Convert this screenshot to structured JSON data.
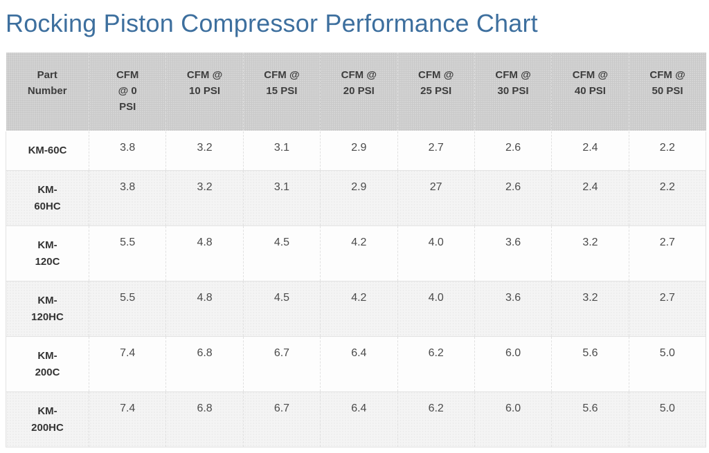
{
  "page": {
    "title": "Rocking Piston Compressor Performance Chart"
  },
  "chart_data": {
    "type": "table",
    "title": "Rocking Piston Compressor Performance Chart",
    "columns": [
      "Part Number",
      "CFM @ 0 PSI",
      "CFM @ 10 PSI",
      "CFM @ 15 PSI",
      "CFM @ 20 PSI",
      "CFM @ 25 PSI",
      "CFM @ 30 PSI",
      "CFM @ 40 PSI",
      "CFM @ 50 PSI"
    ],
    "rows": [
      {
        "part": "KM-60C",
        "values": [
          3.8,
          3.2,
          3.1,
          2.9,
          2.7,
          2.6,
          2.4,
          2.2
        ]
      },
      {
        "part": "KM-60HC",
        "values": [
          3.8,
          3.2,
          3.1,
          2.9,
          27,
          2.6,
          2.4,
          2.2
        ]
      },
      {
        "part": "KM-120C",
        "values": [
          5.5,
          4.8,
          4.5,
          4.2,
          4.0,
          3.6,
          3.2,
          2.7
        ]
      },
      {
        "part": "KM-120HC",
        "values": [
          5.5,
          4.8,
          4.5,
          4.2,
          4.0,
          3.6,
          3.2,
          2.7
        ]
      },
      {
        "part": "KM-200C",
        "values": [
          7.4,
          6.8,
          6.7,
          6.4,
          6.2,
          6.0,
          5.6,
          5.0
        ]
      },
      {
        "part": "KM-200HC",
        "values": [
          7.4,
          6.8,
          6.7,
          6.4,
          6.2,
          6.0,
          5.6,
          5.0
        ]
      }
    ]
  },
  "table": {
    "headers": [
      "Part\nNumber",
      "CFM\n@ 0\nPSI",
      "CFM @\n10 PSI",
      "CFM @\n15 PSI",
      "CFM @\n20 PSI",
      "CFM @\n25 PSI",
      "CFM @\n30 PSI",
      "CFM @\n40 PSI",
      "CFM @\n50 PSI"
    ],
    "rows": [
      {
        "part_display": "KM-60C",
        "values": [
          "3.8",
          "3.2",
          "3.1",
          "2.9",
          "2.7",
          "2.6",
          "2.4",
          "2.2"
        ]
      },
      {
        "part_display": "KM-\n60HC",
        "values": [
          "3.8",
          "3.2",
          "3.1",
          "2.9",
          "27",
          "2.6",
          "2.4",
          "2.2"
        ]
      },
      {
        "part_display": "KM-\n120C",
        "values": [
          "5.5",
          "4.8",
          "4.5",
          "4.2",
          "4.0",
          "3.6",
          "3.2",
          "2.7"
        ]
      },
      {
        "part_display": "KM-\n120HC",
        "values": [
          "5.5",
          "4.8",
          "4.5",
          "4.2",
          "4.0",
          "3.6",
          "3.2",
          "2.7"
        ]
      },
      {
        "part_display": "KM-\n200C",
        "values": [
          "7.4",
          "6.8",
          "6.7",
          "6.4",
          "6.2",
          "6.0",
          "5.6",
          "5.0"
        ]
      },
      {
        "part_display": "KM-\n200HC",
        "values": [
          "7.4",
          "6.8",
          "6.7",
          "6.4",
          "6.2",
          "6.0",
          "5.6",
          "5.0"
        ]
      }
    ]
  },
  "colors": {
    "title": "#3d6f9e",
    "header_bg": "#c9c9c9",
    "header_text": "#3d3d3d",
    "row_bg": "#fdfdfd",
    "stripe_bg": "#f4f4f4",
    "border": "#e2e2e2",
    "cell_text": "#4a4a4a",
    "part_text": "#333333"
  }
}
